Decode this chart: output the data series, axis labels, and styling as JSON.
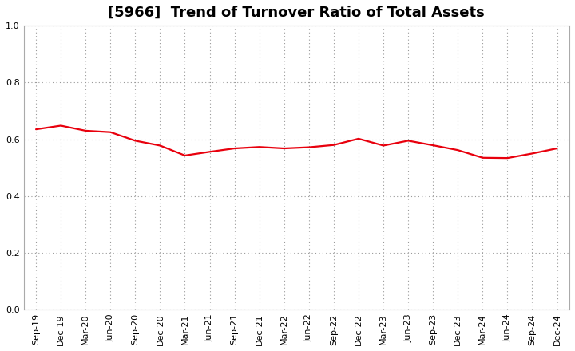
{
  "title": "[5966]  Trend of Turnover Ratio of Total Assets",
  "x_labels": [
    "Sep-19",
    "Dec-19",
    "Mar-20",
    "Jun-20",
    "Sep-20",
    "Dec-20",
    "Mar-21",
    "Jun-21",
    "Sep-21",
    "Dec-21",
    "Mar-22",
    "Jun-22",
    "Sep-22",
    "Dec-22",
    "Mar-23",
    "Jun-23",
    "Sep-23",
    "Dec-23",
    "Mar-24",
    "Jun-24",
    "Sep-24",
    "Dec-24"
  ],
  "values": [
    0.635,
    0.648,
    0.63,
    0.625,
    0.595,
    0.578,
    0.543,
    0.556,
    0.568,
    0.573,
    0.568,
    0.572,
    0.58,
    0.602,
    0.578,
    0.595,
    0.579,
    0.562,
    0.535,
    0.534,
    0.55,
    0.568
  ],
  "line_color": "#e8000d",
  "line_width": 1.6,
  "ylim": [
    0.0,
    1.0
  ],
  "yticks": [
    0.0,
    0.2,
    0.4,
    0.6,
    0.8,
    1.0
  ],
  "background_color": "#ffffff",
  "grid_color": "#999999",
  "title_fontsize": 13,
  "tick_fontsize": 8
}
